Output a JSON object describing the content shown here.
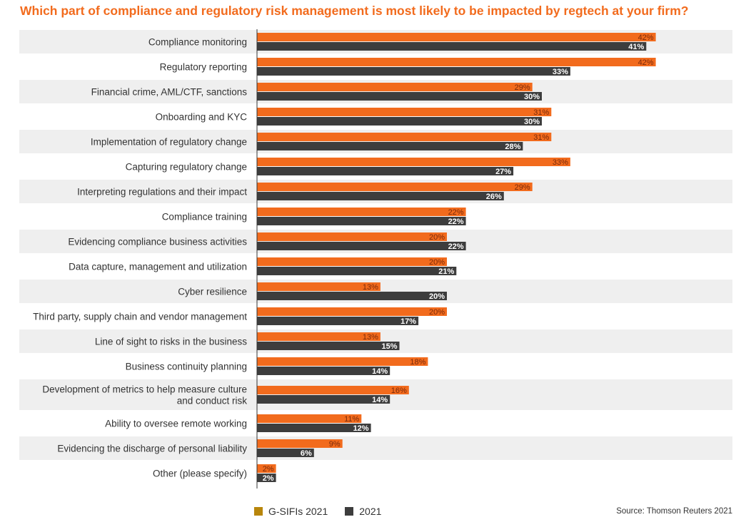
{
  "title": "Which part of compliance and regulatory risk management is most likely to be impacted by regtech at your firm?",
  "source": "Source: Thomson Reuters 2021",
  "colors": {
    "gsifi": "#f26b1d",
    "gsifi_legend": "#b8860b",
    "y2021": "#3d3d3d",
    "band": "#efefef"
  },
  "chart_data": {
    "type": "bar",
    "orientation": "horizontal",
    "title": "Which part of compliance and regulatory risk management is most likely to be impacted by regtech at your firm?",
    "xlim": [
      0,
      45
    ],
    "categories": [
      "Compliance monitoring",
      "Regulatory reporting",
      "Financial crime, AML/CTF, sanctions",
      "Onboarding and KYC",
      "Implementation of regulatory change",
      "Capturing regulatory change",
      "Interpreting regulations and their impact",
      "Compliance training",
      "Evidencing compliance business activities",
      "Data capture, management and utilization",
      "Cyber resilience",
      "Third party, supply chain and vendor management",
      "Line of sight to risks in the business",
      "Business continuity planning",
      "Development of metrics to help measure culture|and conduct risk",
      "Ability to oversee remote working",
      "Evidencing the discharge of personal liability",
      "Other (please specify)"
    ],
    "series": [
      {
        "name": "G-SIFIs 2021",
        "values": [
          42,
          42,
          29,
          31,
          31,
          33,
          29,
          22,
          20,
          20,
          13,
          20,
          13,
          18,
          16,
          11,
          9,
          2
        ]
      },
      {
        "name": "2021",
        "values": [
          41,
          33,
          30,
          30,
          28,
          27,
          26,
          22,
          22,
          21,
          20,
          17,
          15,
          14,
          14,
          12,
          6,
          2
        ]
      }
    ],
    "legend": "bottom"
  }
}
